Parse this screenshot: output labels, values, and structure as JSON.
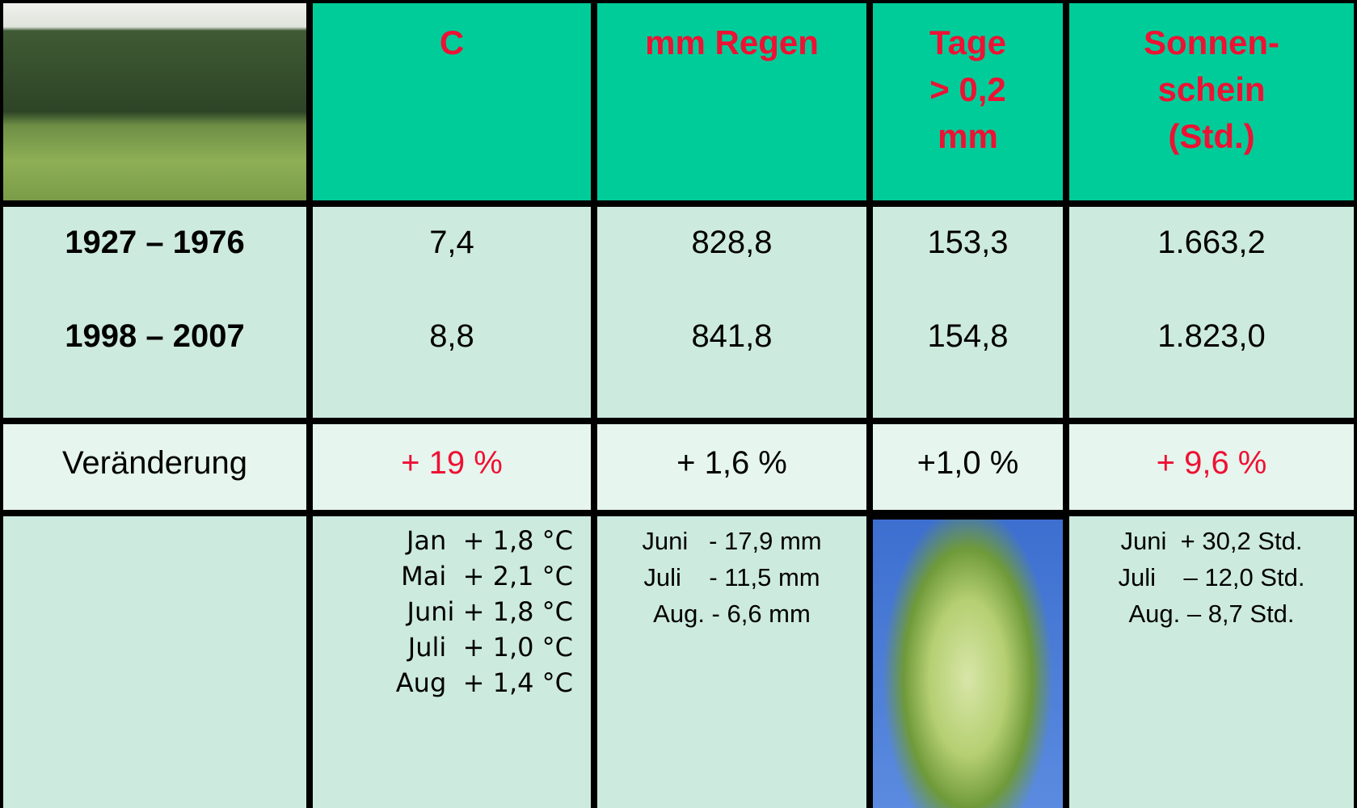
{
  "table": {
    "header": [
      "C",
      "mm Regen",
      "Tage\n> 0,2\nmm",
      "Sonnen-\nschein\n(Std.)"
    ],
    "periods": [
      [
        "1927 – 1976",
        "7,4",
        "828,8",
        "153,3",
        "1.663,2"
      ],
      [
        "1998 – 2007",
        "8,8",
        "841,8",
        "154,8",
        "1.823,0"
      ]
    ],
    "change": [
      "Veränderung",
      "+ 19 %",
      "+ 1,6 %",
      "+1,0 %",
      "+ 9,6 %"
    ],
    "details": {
      "temperature": [
        "Jan  + 1,8 °C",
        "Mai  + 2,1 °C",
        "Juni + 1,8 °C",
        "Juli  + 1,0 °C",
        "Aug  + 1,4 °C"
      ],
      "rain": [
        "Juni   - 17,9 mm",
        "Juli    - 11,5 mm",
        "Aug. - 6,6 mm"
      ],
      "sunshine": [
        "Juni  + 30,2 Std.",
        "Juli    – 12,0 Std.",
        "Aug. – 8,7 Std."
      ]
    }
  }
}
